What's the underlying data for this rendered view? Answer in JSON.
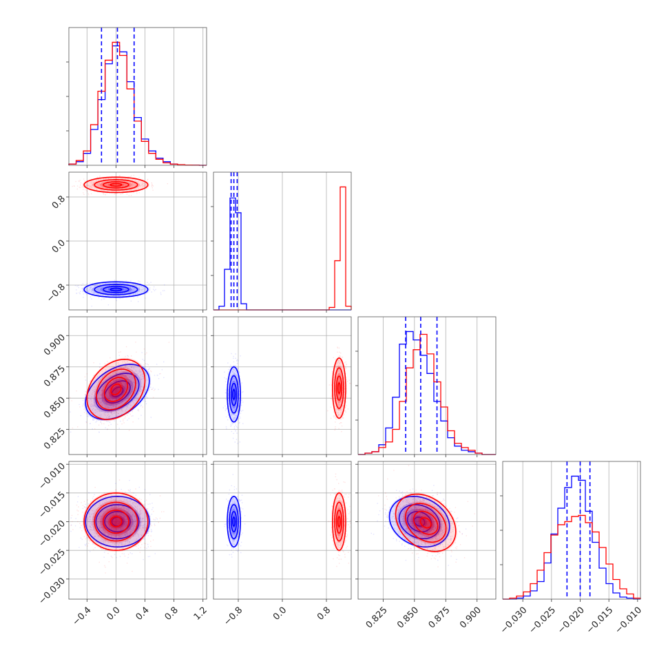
{
  "chart_data": {
    "type": "scatter",
    "subtype": "corner-plot",
    "grid": true,
    "colors": {
      "series_a": "#0000ff",
      "series_b": "#ff0000"
    },
    "series": [
      {
        "color_key": "series_a"
      },
      {
        "color_key": "series_b"
      }
    ],
    "parameters": [
      {
        "range": [
          -0.65,
          1.25
        ],
        "tick_values": [
          -0.4,
          0.0,
          0.4,
          0.8,
          1.2
        ],
        "tick_labels": [
          "−0.4",
          "0.0",
          "0.4",
          "0.8",
          "1.2"
        ],
        "quantiles": [
          -0.2,
          0.02,
          0.25
        ],
        "hist_bins": [
          -0.65,
          -0.55,
          -0.45,
          -0.35,
          -0.25,
          -0.15,
          -0.05,
          0.05,
          0.15,
          0.25,
          0.35,
          0.45,
          0.55,
          0.65,
          0.75,
          0.85,
          0.95,
          1.05,
          1.15,
          1.25
        ],
        "hist_a": [
          1,
          3,
          10,
          30,
          55,
          85,
          100,
          95,
          70,
          40,
          22,
          12,
          6,
          3,
          1,
          0.5,
          0.2,
          0.1,
          0
        ],
        "hist_b": [
          1,
          4,
          12,
          34,
          62,
          88,
          103,
          92,
          64,
          37,
          20,
          10,
          5,
          2,
          1,
          0.5,
          0.2,
          0.1,
          0
        ]
      },
      {
        "range": [
          -1.25,
          1.25
        ],
        "tick_values": [
          -0.8,
          0.0,
          0.8
        ],
        "tick_labels": [
          "−0.8",
          "0.0",
          "0.8"
        ],
        "quantiles": [
          -0.93,
          -0.88,
          -0.82
        ],
        "hist_bins": [
          -1.25,
          -1.15,
          -1.05,
          -0.95,
          -0.85,
          -0.75,
          -0.65,
          -0.55,
          -0.45,
          -0.35,
          -0.25,
          -0.15,
          -0.05,
          0.05,
          0.15,
          0.25,
          0.35,
          0.45,
          0.55,
          0.65,
          0.75,
          0.85,
          0.95,
          1.05,
          1.15,
          1.25
        ],
        "hist_a": [
          0,
          3,
          33,
          91,
          79,
          5,
          0,
          0,
          0,
          0,
          0,
          0,
          0,
          0,
          0,
          0,
          0,
          0,
          0,
          0,
          0,
          0,
          0,
          0,
          0
        ],
        "hist_b": [
          0,
          0,
          0,
          0,
          0,
          0,
          0,
          0,
          0,
          0,
          0,
          0,
          0,
          0,
          0,
          0,
          0,
          0,
          0,
          0,
          0,
          2,
          40,
          100,
          3
        ]
      },
      {
        "range": [
          0.805,
          0.915
        ],
        "tick_values": [
          0.825,
          0.85,
          0.875,
          0.9
        ],
        "tick_labels": [
          "0.825",
          "0.850",
          "0.875",
          "0.900"
        ],
        "quantiles": [
          0.843,
          0.855,
          0.868
        ],
        "hist_bins": [
          0.805,
          0.8105,
          0.816,
          0.8215,
          0.827,
          0.8325,
          0.838,
          0.8435,
          0.849,
          0.8545,
          0.86,
          0.8655,
          0.871,
          0.8765,
          0.882,
          0.8875,
          0.893,
          0.8985,
          0.904,
          0.9095,
          0.915
        ],
        "hist_a": [
          0,
          1,
          2,
          7,
          19,
          41,
          79,
          88,
          82,
          71,
          58,
          38,
          24,
          12,
          6,
          3,
          2,
          1,
          0,
          0
        ],
        "hist_b": [
          0,
          1,
          2,
          5,
          9,
          18,
          38,
          62,
          75,
          86,
          72,
          52,
          34,
          17,
          8,
          5,
          3,
          1,
          0,
          0
        ]
      },
      {
        "range": [
          -0.0335,
          -0.0095
        ],
        "tick_values": [
          -0.03,
          -0.025,
          -0.02,
          -0.015,
          -0.01
        ],
        "tick_labels": [
          "−0.030",
          "−0.025",
          "−0.020",
          "−0.015",
          "−0.010"
        ],
        "quantiles": [
          -0.0223,
          -0.02,
          -0.0183
        ],
        "hist_bins": [
          -0.0335,
          -0.0323,
          -0.0311,
          -0.0299,
          -0.0287,
          -0.0275,
          -0.0263,
          -0.0251,
          -0.0239,
          -0.0227,
          -0.0215,
          -0.0203,
          -0.0191,
          -0.0179,
          -0.0167,
          -0.0155,
          -0.0143,
          -0.0131,
          -0.0119,
          -0.0107,
          -0.0095
        ],
        "hist_a": [
          0,
          0,
          1,
          3,
          8,
          17,
          35,
          63,
          88,
          108,
          119,
          115,
          85,
          55,
          30,
          15,
          6,
          2,
          1,
          0
        ],
        "hist_b": [
          0,
          1,
          3,
          7,
          15,
          28,
          45,
          62,
          72,
          75,
          80,
          81,
          74,
          65,
          50,
          34,
          19,
          10,
          5,
          1
        ]
      }
    ],
    "scatter_blobs": [
      {
        "row": 1,
        "col": 0,
        "a": {
          "mean": [
            0.0,
            -0.88
          ],
          "sd": [
            0.22,
            0.07
          ],
          "rho": 0.0
        },
        "b": {
          "mean": [
            0.0,
            1.02
          ],
          "sd": [
            0.22,
            0.07
          ],
          "rho": 0.0
        }
      },
      {
        "row": 2,
        "col": 0,
        "a": {
          "mean": [
            0.02,
            0.855
          ],
          "sd": [
            0.22,
            0.011
          ],
          "rho": 0.4
        },
        "b": {
          "mean": [
            0.0,
            0.857
          ],
          "sd": [
            0.2,
            0.012
          ],
          "rho": 0.3
        }
      },
      {
        "row": 2,
        "col": 1,
        "a": {
          "mean": [
            -0.88,
            0.853
          ],
          "sd": [
            0.06,
            0.011
          ],
          "rho": 0.0
        },
        "b": {
          "mean": [
            1.03,
            0.858
          ],
          "sd": [
            0.06,
            0.012
          ],
          "rho": 0.0
        }
      },
      {
        "row": 3,
        "col": 0,
        "a": {
          "mean": [
            0.02,
            -0.02
          ],
          "sd": [
            0.22,
            0.0022
          ],
          "rho": 0.0
        },
        "b": {
          "mean": [
            0.0,
            -0.02
          ],
          "sd": [
            0.22,
            0.0025
          ],
          "rho": 0.0
        }
      },
      {
        "row": 3,
        "col": 1,
        "a": {
          "mean": [
            -0.88,
            -0.02
          ],
          "sd": [
            0.06,
            0.0022
          ],
          "rho": 0.0
        },
        "b": {
          "mean": [
            1.03,
            -0.02
          ],
          "sd": [
            0.06,
            0.0025
          ],
          "rho": 0.0
        }
      },
      {
        "row": 3,
        "col": 2,
        "a": {
          "mean": [
            0.854,
            -0.02
          ],
          "sd": [
            0.012,
            0.0022
          ],
          "rho": -0.2
        },
        "b": {
          "mean": [
            0.859,
            -0.0202
          ],
          "sd": [
            0.012,
            0.0025
          ],
          "rho": -0.3
        }
      }
    ]
  }
}
